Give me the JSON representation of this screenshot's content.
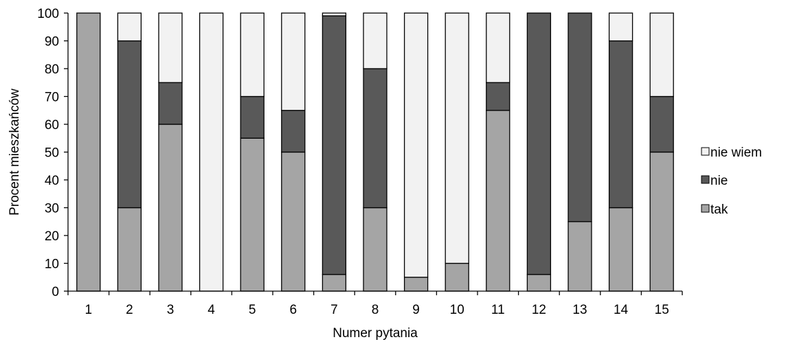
{
  "chart_data": {
    "type": "bar",
    "stacked": true,
    "categories": [
      "1",
      "2",
      "3",
      "4",
      "5",
      "6",
      "7",
      "8",
      "9",
      "10",
      "11",
      "12",
      "13",
      "14",
      "15"
    ],
    "series": [
      {
        "name": "tak",
        "color": "#a5a5a5",
        "values": [
          100,
          30,
          60,
          0,
          55,
          50,
          6,
          30,
          5,
          10,
          65,
          6,
          25,
          30,
          50
        ]
      },
      {
        "name": "nie",
        "color": "#595959",
        "values": [
          0,
          60,
          15,
          0,
          15,
          15,
          93,
          50,
          0,
          0,
          10,
          94,
          75,
          60,
          20
        ]
      },
      {
        "name": "nie wiem",
        "color": "#f2f2f2",
        "values": [
          0,
          10,
          25,
          100,
          30,
          35,
          1,
          20,
          95,
          90,
          25,
          0,
          0,
          10,
          30
        ]
      }
    ],
    "xlabel": "Numer pytania",
    "ylabel": "Procent  mieszkańców",
    "ylim": [
      0,
      100
    ],
    "yticks": [
      0,
      10,
      20,
      30,
      40,
      50,
      60,
      70,
      80,
      90,
      100
    ],
    "grid": false,
    "legend": "right",
    "legend_order": [
      "nie wiem",
      "nie",
      "tak"
    ]
  }
}
